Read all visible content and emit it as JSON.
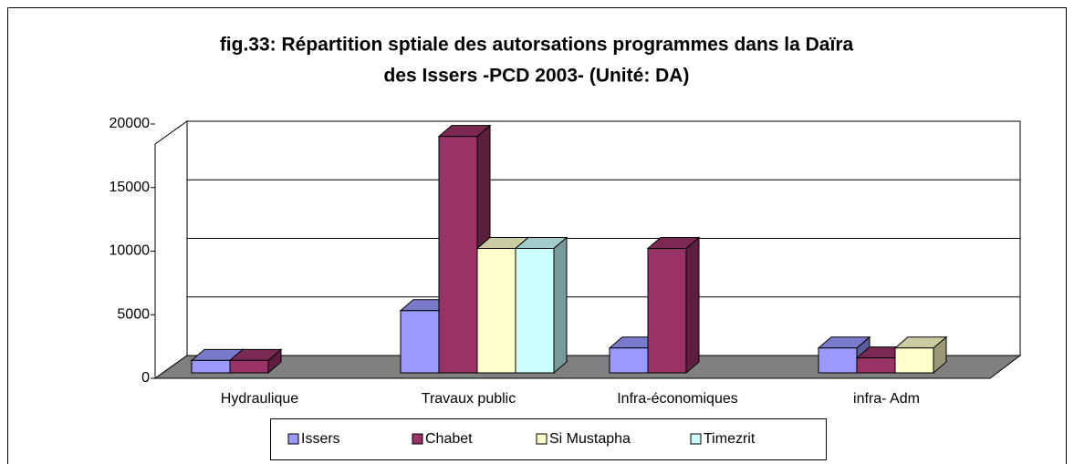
{
  "chart_data": {
    "type": "bar3d",
    "title_lines": [
      "fig.33: Répartition sptiale des autorsations programmes dans la Daïra",
      "des Issers -PCD 2003- (Unité: DA)"
    ],
    "categories": [
      "Hydraulique",
      "Travaux public",
      "Infra-économiques",
      "infra- Adm"
    ],
    "series": [
      {
        "name": "Issers",
        "color": "#9999ff",
        "values": [
          1000,
          5000,
          2000,
          2000
        ]
      },
      {
        "name": "Chabet",
        "color": "#993366",
        "values": [
          1000,
          19000,
          10000,
          1200
        ]
      },
      {
        "name": "Si Mustapha",
        "color": "#ffffcc",
        "values": [
          null,
          10000,
          null,
          2000
        ]
      },
      {
        "name": "Timezrit",
        "color": "#ccffff",
        "values": [
          null,
          10000,
          null,
          null
        ]
      }
    ],
    "ylim": [
      0,
      20000
    ],
    "yticks": [
      0,
      5000,
      10000,
      15000,
      20000
    ],
    "grid": true,
    "legend": "bottom"
  }
}
